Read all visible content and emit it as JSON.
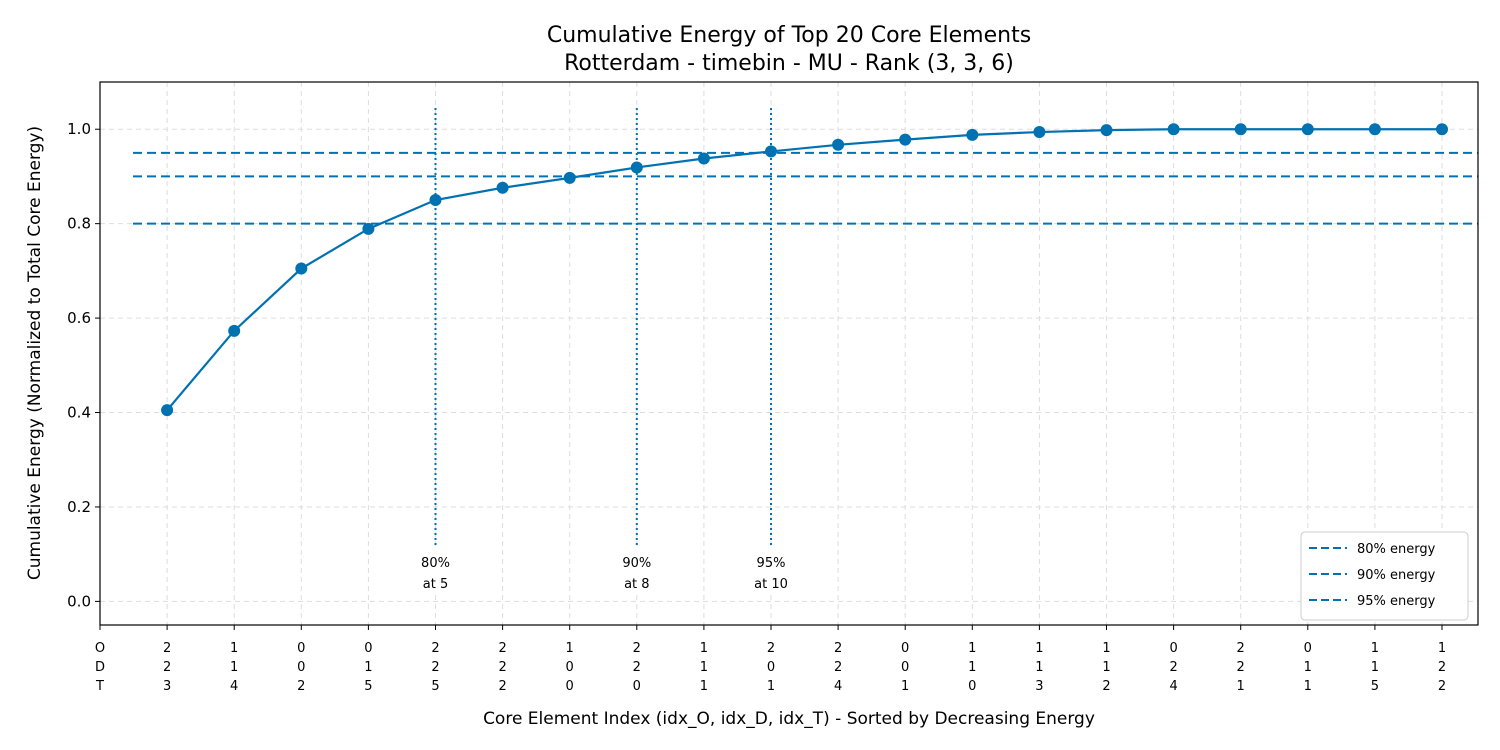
{
  "chart_data": {
    "type": "line",
    "title": "Cumulative Energy of Top 20 Core Elements",
    "subtitle": "Rotterdam - timebin - MU - Rank (3, 3, 6)",
    "xlabel": "Core Element Index (idx_O, idx_D, idx_T) - Sorted by Decreasing Energy",
    "ylabel": "Cumulative Energy (Normalized to Total Core Energy)",
    "ylim": [
      -0.05,
      1.1
    ],
    "yticks": [
      "0.0",
      "0.2",
      "0.4",
      "0.6",
      "0.8",
      "1.0"
    ],
    "grid": true,
    "legend_position": "bottom-right",
    "color": "#0072B2",
    "x_header": [
      "O",
      "D",
      "T"
    ],
    "categories": [
      [
        "2",
        "2",
        "3"
      ],
      [
        "1",
        "1",
        "4"
      ],
      [
        "0",
        "0",
        "2"
      ],
      [
        "0",
        "1",
        "5"
      ],
      [
        "2",
        "2",
        "5"
      ],
      [
        "2",
        "2",
        "2"
      ],
      [
        "1",
        "0",
        "0"
      ],
      [
        "2",
        "2",
        "0"
      ],
      [
        "1",
        "1",
        "1"
      ],
      [
        "2",
        "0",
        "1"
      ],
      [
        "2",
        "2",
        "4"
      ],
      [
        "0",
        "0",
        "1"
      ],
      [
        "1",
        "1",
        "0"
      ],
      [
        "1",
        "1",
        "3"
      ],
      [
        "1",
        "1",
        "2"
      ],
      [
        "0",
        "2",
        "4"
      ],
      [
        "2",
        "2",
        "1"
      ],
      [
        "0",
        "1",
        "1"
      ],
      [
        "1",
        "1",
        "5"
      ],
      [
        "1",
        "2",
        "2"
      ]
    ],
    "values": [
      0.405,
      0.573,
      0.705,
      0.789,
      0.85,
      0.876,
      0.897,
      0.919,
      0.938,
      0.953,
      0.967,
      0.978,
      0.988,
      0.994,
      0.998,
      1.0,
      1.0,
      1.0,
      1.0,
      1.0
    ],
    "thresholds": [
      {
        "name": "80% energy",
        "value": 0.8
      },
      {
        "name": "90% energy",
        "value": 0.9
      },
      {
        "name": "95% energy",
        "value": 0.95
      }
    ],
    "annotations": [
      {
        "x_index": 5,
        "line1": "80%",
        "line2": "at 5"
      },
      {
        "x_index": 8,
        "line1": "90%",
        "line2": "at 8"
      },
      {
        "x_index": 10,
        "line1": "95%",
        "line2": "at 10"
      }
    ]
  }
}
